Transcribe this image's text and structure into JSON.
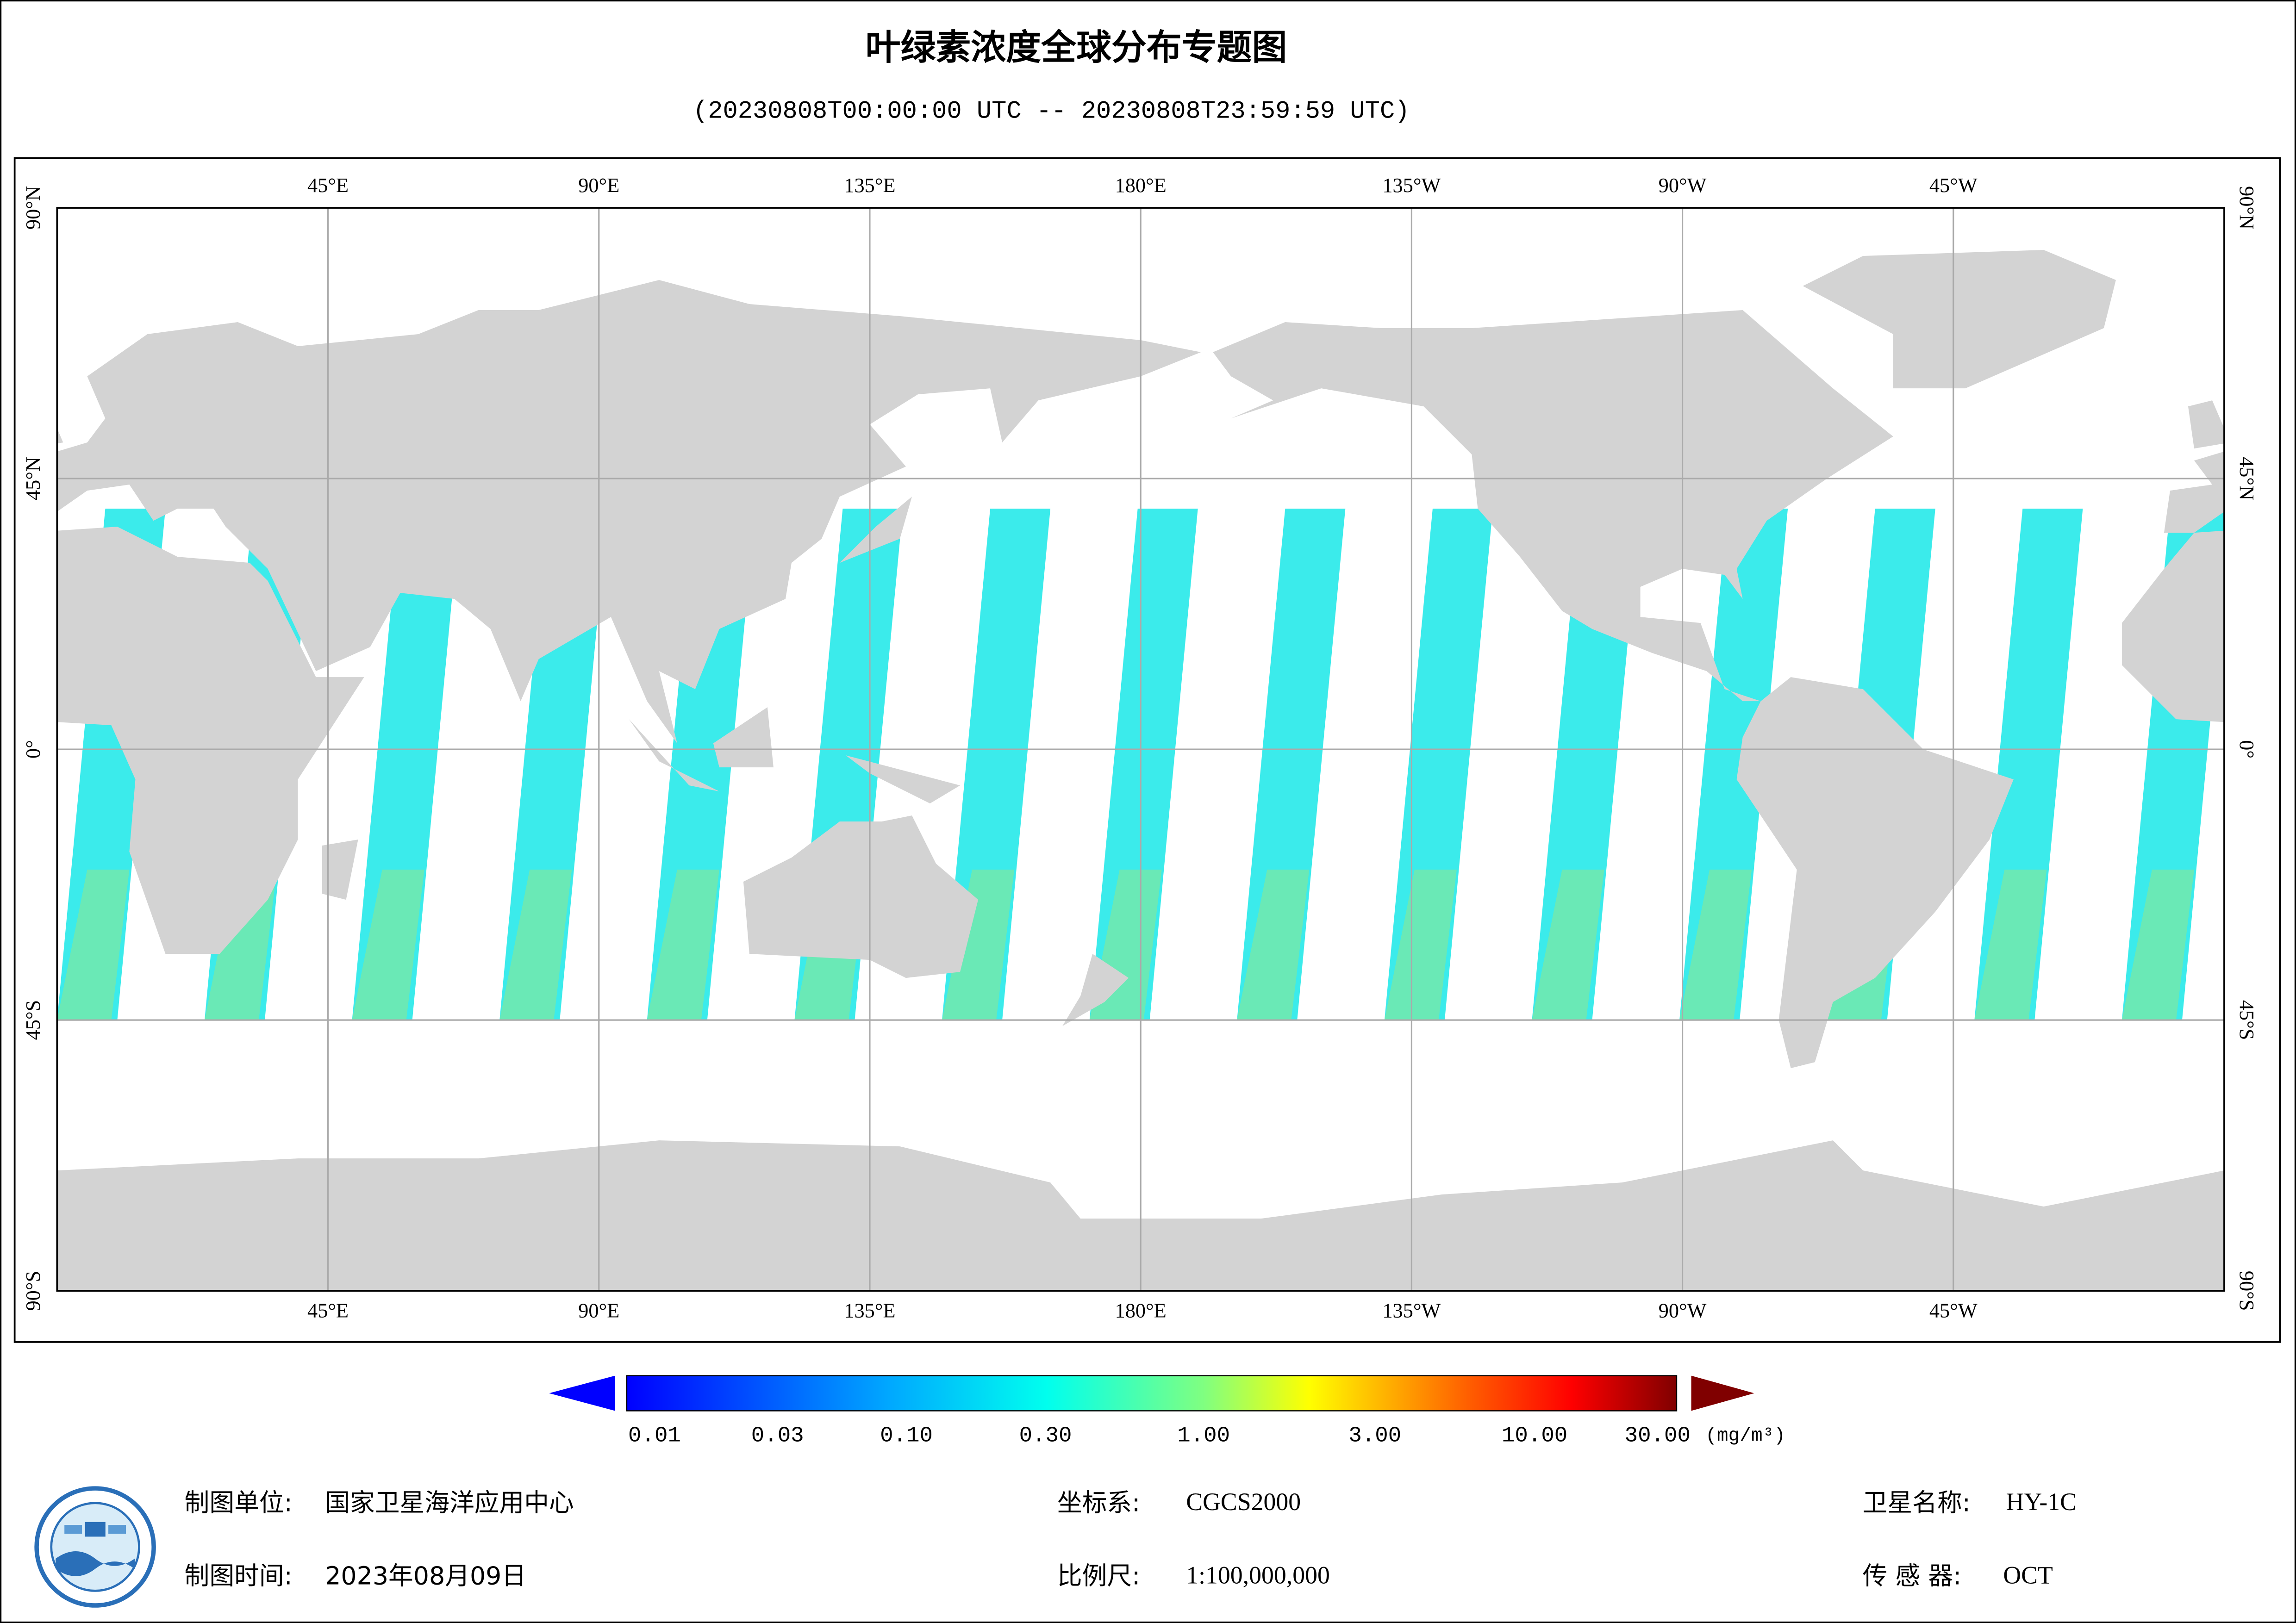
{
  "title": "叶绿素浓度全球分布专题图",
  "subtitle": "(20230808T00:00:00 UTC -- 20230808T23:59:59 UTC)",
  "map": {
    "lon_labels": [
      "45°E",
      "90°E",
      "135°E",
      "180°E",
      "135°W",
      "90°W",
      "45°W"
    ],
    "lat_labels": [
      "90°N",
      "45°N",
      "0°",
      "45°S",
      "90°S"
    ]
  },
  "colorbar": {
    "ticks": [
      "0.01",
      "0.03",
      "0.10",
      "0.30",
      "1.00",
      "3.00",
      "10.00",
      "30.00"
    ],
    "unit": "(mg/m³)"
  },
  "footer": {
    "unit_label": "制图单位:",
    "unit": "国家卫星海洋应用中心",
    "time_label": "制图时间:",
    "time": "2023年08月09日",
    "crs_label": "坐标系:",
    "crs": "CGCS2000",
    "scale_label": "比例尺:",
    "scale": "1:100,000,000",
    "satellite_label": "卫星名称:",
    "satellite": "HY-1C",
    "sensor_label": "传 感 器:",
    "sensor": "OCT"
  }
}
